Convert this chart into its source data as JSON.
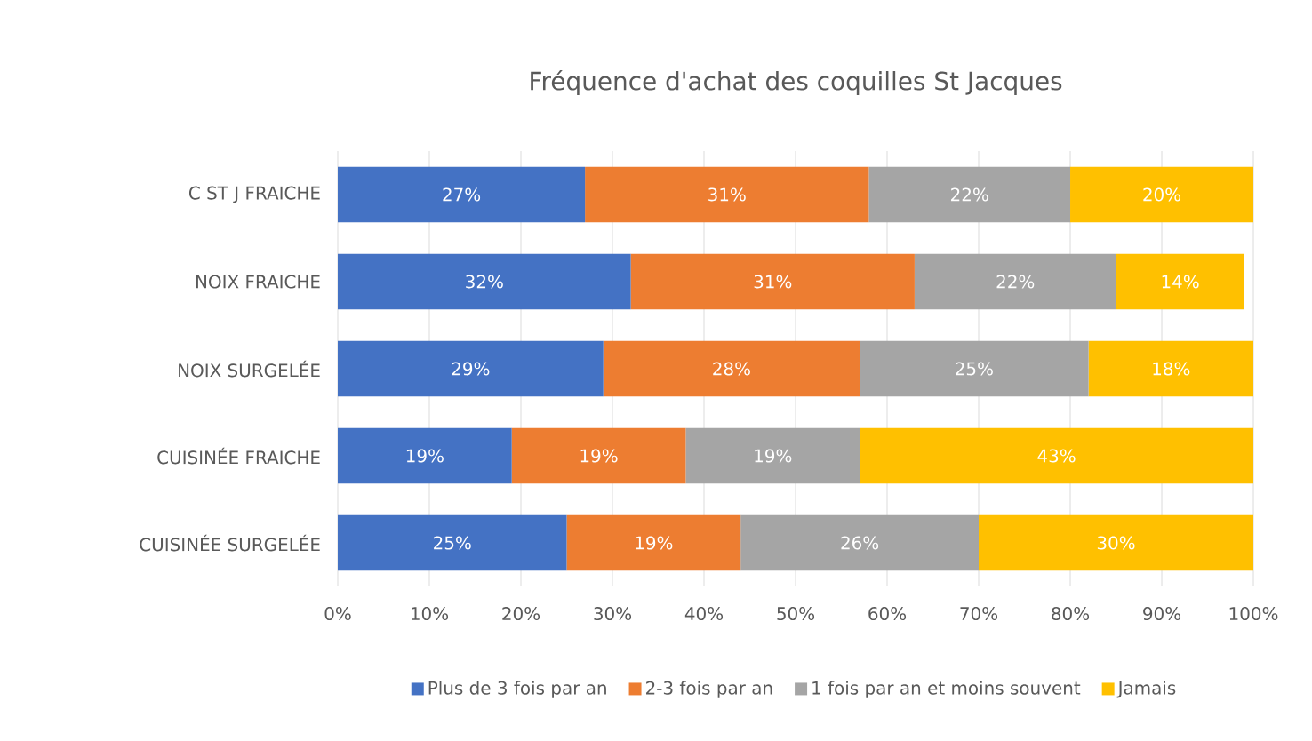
{
  "chart_data": {
    "type": "bar",
    "orientation": "horizontal",
    "stacked": true,
    "title": "Fréquence d'achat des coquilles St Jacques",
    "categories": [
      "C ST J FRAICHE",
      "NOIX FRAICHE",
      "NOIX SURGELÉE",
      "CUISINÉE FRAICHE",
      "CUISINÉE SURGELÉE"
    ],
    "series": [
      {
        "name": "Plus de 3 fois par an",
        "color": "#4472c4",
        "values": [
          27,
          32,
          29,
          19,
          25
        ],
        "value_labels": [
          "27%",
          "32%",
          "29%",
          "19%",
          "25%"
        ]
      },
      {
        "name": "2-3 fois par an",
        "color": "#ed7d31",
        "values": [
          31,
          31,
          28,
          19,
          19
        ],
        "value_labels": [
          "31%",
          "31%",
          "28%",
          "19%",
          "19%"
        ]
      },
      {
        "name": "1 fois par an et moins souvent",
        "color": "#a5a5a5",
        "values": [
          22,
          22,
          25,
          19,
          26
        ],
        "value_labels": [
          "22%",
          "22%",
          "25%",
          "19%",
          "26%"
        ]
      },
      {
        "name": "Jamais",
        "color": "#ffc000",
        "values": [
          20,
          14,
          18,
          43,
          30
        ],
        "value_labels": [
          "20%",
          "14%",
          "18%",
          "43%",
          "30%"
        ]
      }
    ],
    "xlim": [
      0,
      100
    ],
    "xticks": [
      {
        "value": 0,
        "label": "0%"
      },
      {
        "value": 10,
        "label": "10%"
      },
      {
        "value": 20,
        "label": "20%"
      },
      {
        "value": 30,
        "label": "30%"
      },
      {
        "value": 40,
        "label": "40%"
      },
      {
        "value": 50,
        "label": "50%"
      },
      {
        "value": 60,
        "label": "60%"
      },
      {
        "value": 70,
        "label": "70%"
      },
      {
        "value": 80,
        "label": "80%"
      },
      {
        "value": 90,
        "label": "90%"
      },
      {
        "value": 100,
        "label": "100%"
      }
    ],
    "grid": "x",
    "legend": "bottom"
  }
}
